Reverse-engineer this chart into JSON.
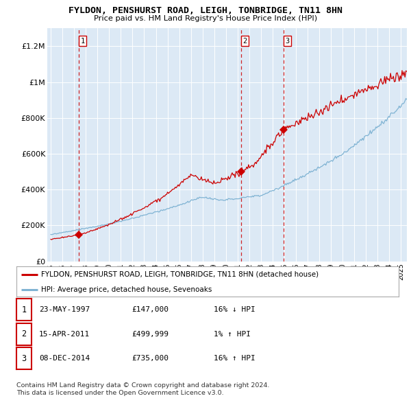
{
  "title": "FYLDON, PENSHURST ROAD, LEIGH, TONBRIDGE, TN11 8HN",
  "subtitle": "Price paid vs. HM Land Registry's House Price Index (HPI)",
  "ylim": [
    0,
    1300000
  ],
  "yticks": [
    0,
    200000,
    400000,
    600000,
    800000,
    1000000,
    1200000
  ],
  "ytick_labels": [
    "£0",
    "£200K",
    "£400K",
    "£600K",
    "£800K",
    "£1M",
    "£1.2M"
  ],
  "sale_year_floats": [
    1997.39,
    2011.29,
    2014.92
  ],
  "sale_prices": [
    147000,
    499999,
    735000
  ],
  "sale_labels": [
    "1",
    "2",
    "3"
  ],
  "sale_color": "#cc0000",
  "hpi_color": "#7fb3d3",
  "vline_color": "#cc0000",
  "background_color": "#dce9f5",
  "legend_entries": [
    "FYLDON, PENSHURST ROAD, LEIGH, TONBRIDGE, TN11 8HN (detached house)",
    "HPI: Average price, detached house, Sevenoaks"
  ],
  "table_rows": [
    [
      "1",
      "23-MAY-1997",
      "£147,000",
      "16% ↓ HPI"
    ],
    [
      "2",
      "15-APR-2011",
      "£499,999",
      "1% ↑ HPI"
    ],
    [
      "3",
      "08-DEC-2014",
      "£735,000",
      "16% ↑ HPI"
    ]
  ],
  "footnote1": "Contains HM Land Registry data © Crown copyright and database right 2024.",
  "footnote2": "This data is licensed under the Open Government Licence v3.0."
}
